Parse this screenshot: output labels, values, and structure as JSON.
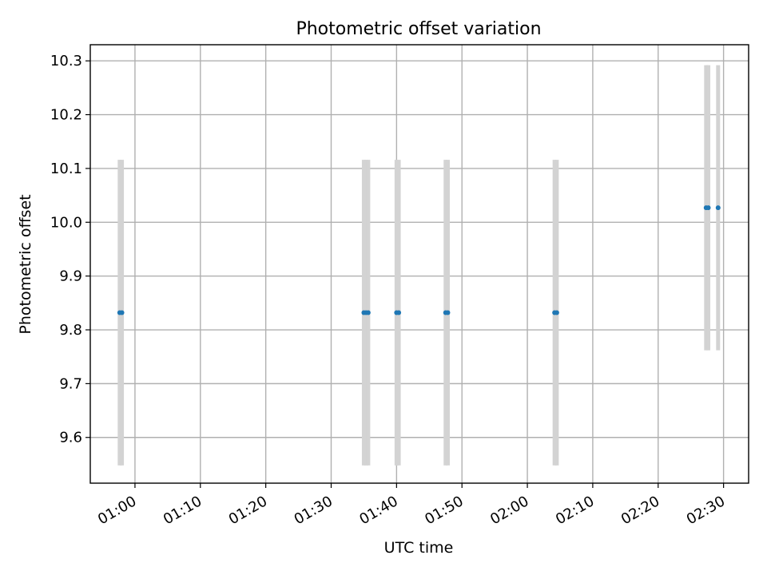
{
  "chart_data": {
    "type": "scatter",
    "title": "Photometric offset variation",
    "xlabel": "UTC time",
    "ylabel": "Photometric offset",
    "x_tick_labels": [
      "01:00",
      "01:10",
      "01:20",
      "01:30",
      "01:40",
      "01:50",
      "02:00",
      "02:10",
      "02:20",
      "02:30"
    ],
    "x_tick_values": [
      "01:00",
      "01:10",
      "01:20",
      "01:30",
      "01:40",
      "01:50",
      "02:00",
      "02:10",
      "02:20",
      "02:30"
    ],
    "xlim": [
      "00:53:10",
      "02:33:50"
    ],
    "y_tick_labels": [
      "9.6",
      "9.7",
      "9.8",
      "9.9",
      "10.0",
      "10.1",
      "10.2",
      "10.3"
    ],
    "y_tick_values": [
      9.6,
      9.7,
      9.8,
      9.9,
      10.0,
      10.1,
      10.2,
      10.3
    ],
    "ylim": [
      9.515,
      10.33
    ],
    "grid": true,
    "series": [
      {
        "color": "#1f77b4",
        "error_color": "#d3d3d3",
        "points": [
          {
            "x": "00:57:40",
            "y": 9.832,
            "ylow": 9.548,
            "yhigh": 10.116
          },
          {
            "x": "00:58:00",
            "y": 9.832,
            "ylow": 9.548,
            "yhigh": 10.116
          },
          {
            "x": "01:35:00",
            "y": 9.832,
            "ylow": 9.548,
            "yhigh": 10.116
          },
          {
            "x": "01:35:20",
            "y": 9.832,
            "ylow": 9.548,
            "yhigh": 10.116
          },
          {
            "x": "01:35:40",
            "y": 9.832,
            "ylow": 9.548,
            "yhigh": 10.116
          },
          {
            "x": "01:40:00",
            "y": 9.832,
            "ylow": 9.548,
            "yhigh": 10.116
          },
          {
            "x": "01:40:20",
            "y": 9.832,
            "ylow": 9.548,
            "yhigh": 10.116
          },
          {
            "x": "01:47:30",
            "y": 9.832,
            "ylow": 9.548,
            "yhigh": 10.116
          },
          {
            "x": "01:47:50",
            "y": 9.832,
            "ylow": 9.548,
            "yhigh": 10.116
          },
          {
            "x": "02:04:10",
            "y": 9.832,
            "ylow": 9.548,
            "yhigh": 10.116
          },
          {
            "x": "02:04:30",
            "y": 9.832,
            "ylow": 9.548,
            "yhigh": 10.116
          },
          {
            "x": "02:27:20",
            "y": 10.027,
            "ylow": 9.762,
            "yhigh": 10.292
          },
          {
            "x": "02:27:40",
            "y": 10.027,
            "ylow": 9.762,
            "yhigh": 10.292
          },
          {
            "x": "02:29:10",
            "y": 10.027,
            "ylow": 9.762,
            "yhigh": 10.292
          }
        ]
      }
    ]
  }
}
